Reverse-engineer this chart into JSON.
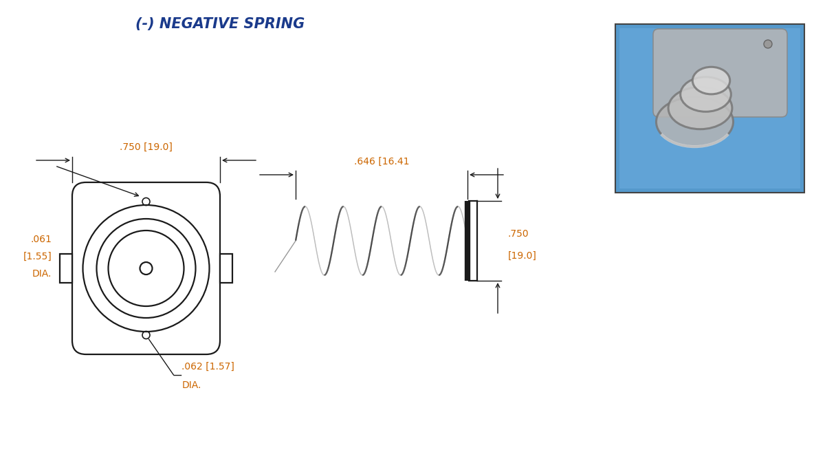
{
  "title": "(-) NEGATIVE SPRING",
  "title_color": "#1a3a8b",
  "title_fontsize": 15,
  "bg_color": "#ffffff",
  "dim_color": "#cc6600",
  "draw_color": "#1a1a1a",
  "dim_fontsize": 10,
  "ann_w750_top": ".750 [19.0]",
  "ann_w646": ".646 [16.41",
  "ann_h750_line1": ".750",
  "ann_h750_line2": "[19.0]",
  "ann_061_line1": ".061",
  "ann_061_line2": "[1.55]",
  "ann_061_line3": "DIA.",
  "ann_062": ".062 [1.57]",
  "ann_062b": "DIA.",
  "photo_bg": "#5599cc",
  "photo_inner": "#6aabdd"
}
